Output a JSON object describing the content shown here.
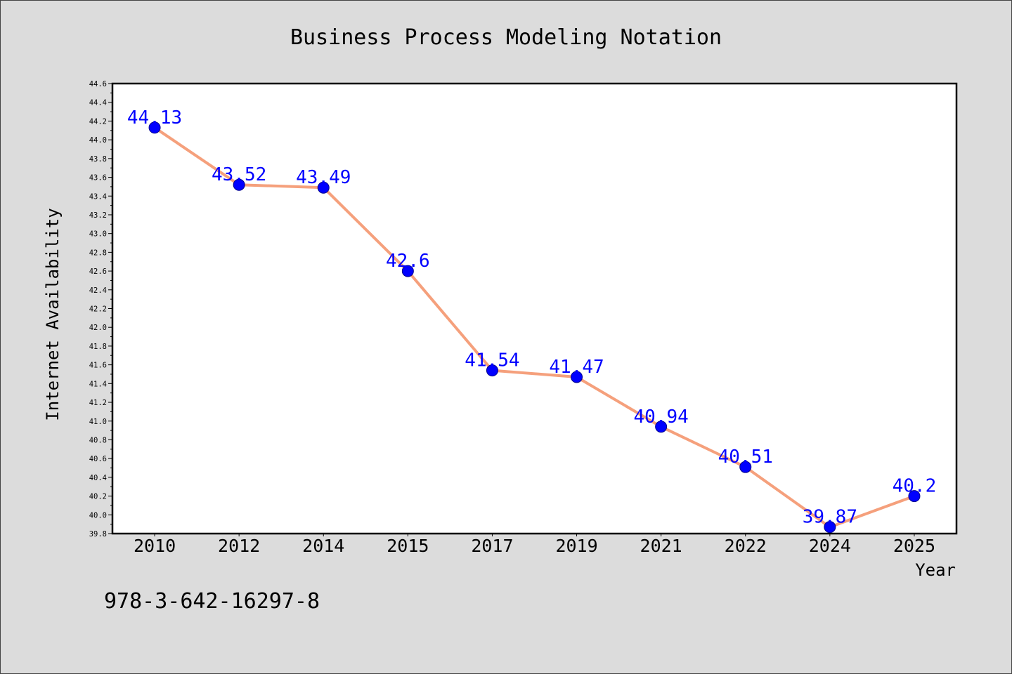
{
  "chart_data": {
    "type": "line",
    "title": "Business Process Modeling Notation",
    "xlabel": "Year",
    "ylabel": "Internet Availability",
    "categories": [
      "2010",
      "2012",
      "2014",
      "2015",
      "2017",
      "2019",
      "2021",
      "2022",
      "2024",
      "2025"
    ],
    "values": [
      44.13,
      43.52,
      43.49,
      42.6,
      41.54,
      41.47,
      40.94,
      40.51,
      39.87,
      40.2
    ],
    "data_labels": [
      "44.13",
      "43.52",
      "43.49",
      "42.6",
      "41.54",
      "41.47",
      "40.94",
      "40.51",
      "39.87",
      "40.2"
    ],
    "ylim": [
      39.8,
      44.6
    ],
    "ytick_labels": [
      "39.8",
      "40.0",
      "40.2",
      "40.4",
      "40.6",
      "40.8",
      "41.0",
      "41.2",
      "41.4",
      "41.6",
      "41.8",
      "42.0",
      "42.2",
      "42.4",
      "42.6",
      "42.8",
      "43.0",
      "43.2",
      "43.4",
      "43.6",
      "43.8",
      "44.0",
      "44.2",
      "44.4",
      "44.6"
    ],
    "grid": false
  },
  "annotation": "978-3-642-16297-8",
  "colors": {
    "figure_background": "#dcdcdc",
    "figure_border": "#444444",
    "plot_background": "#ffffff",
    "axis": "#000000",
    "line": "#f5a07c",
    "marker": "#0000ff",
    "marker_edge": "#00008b",
    "data_label": "#0000ff",
    "text": "#000000"
  }
}
